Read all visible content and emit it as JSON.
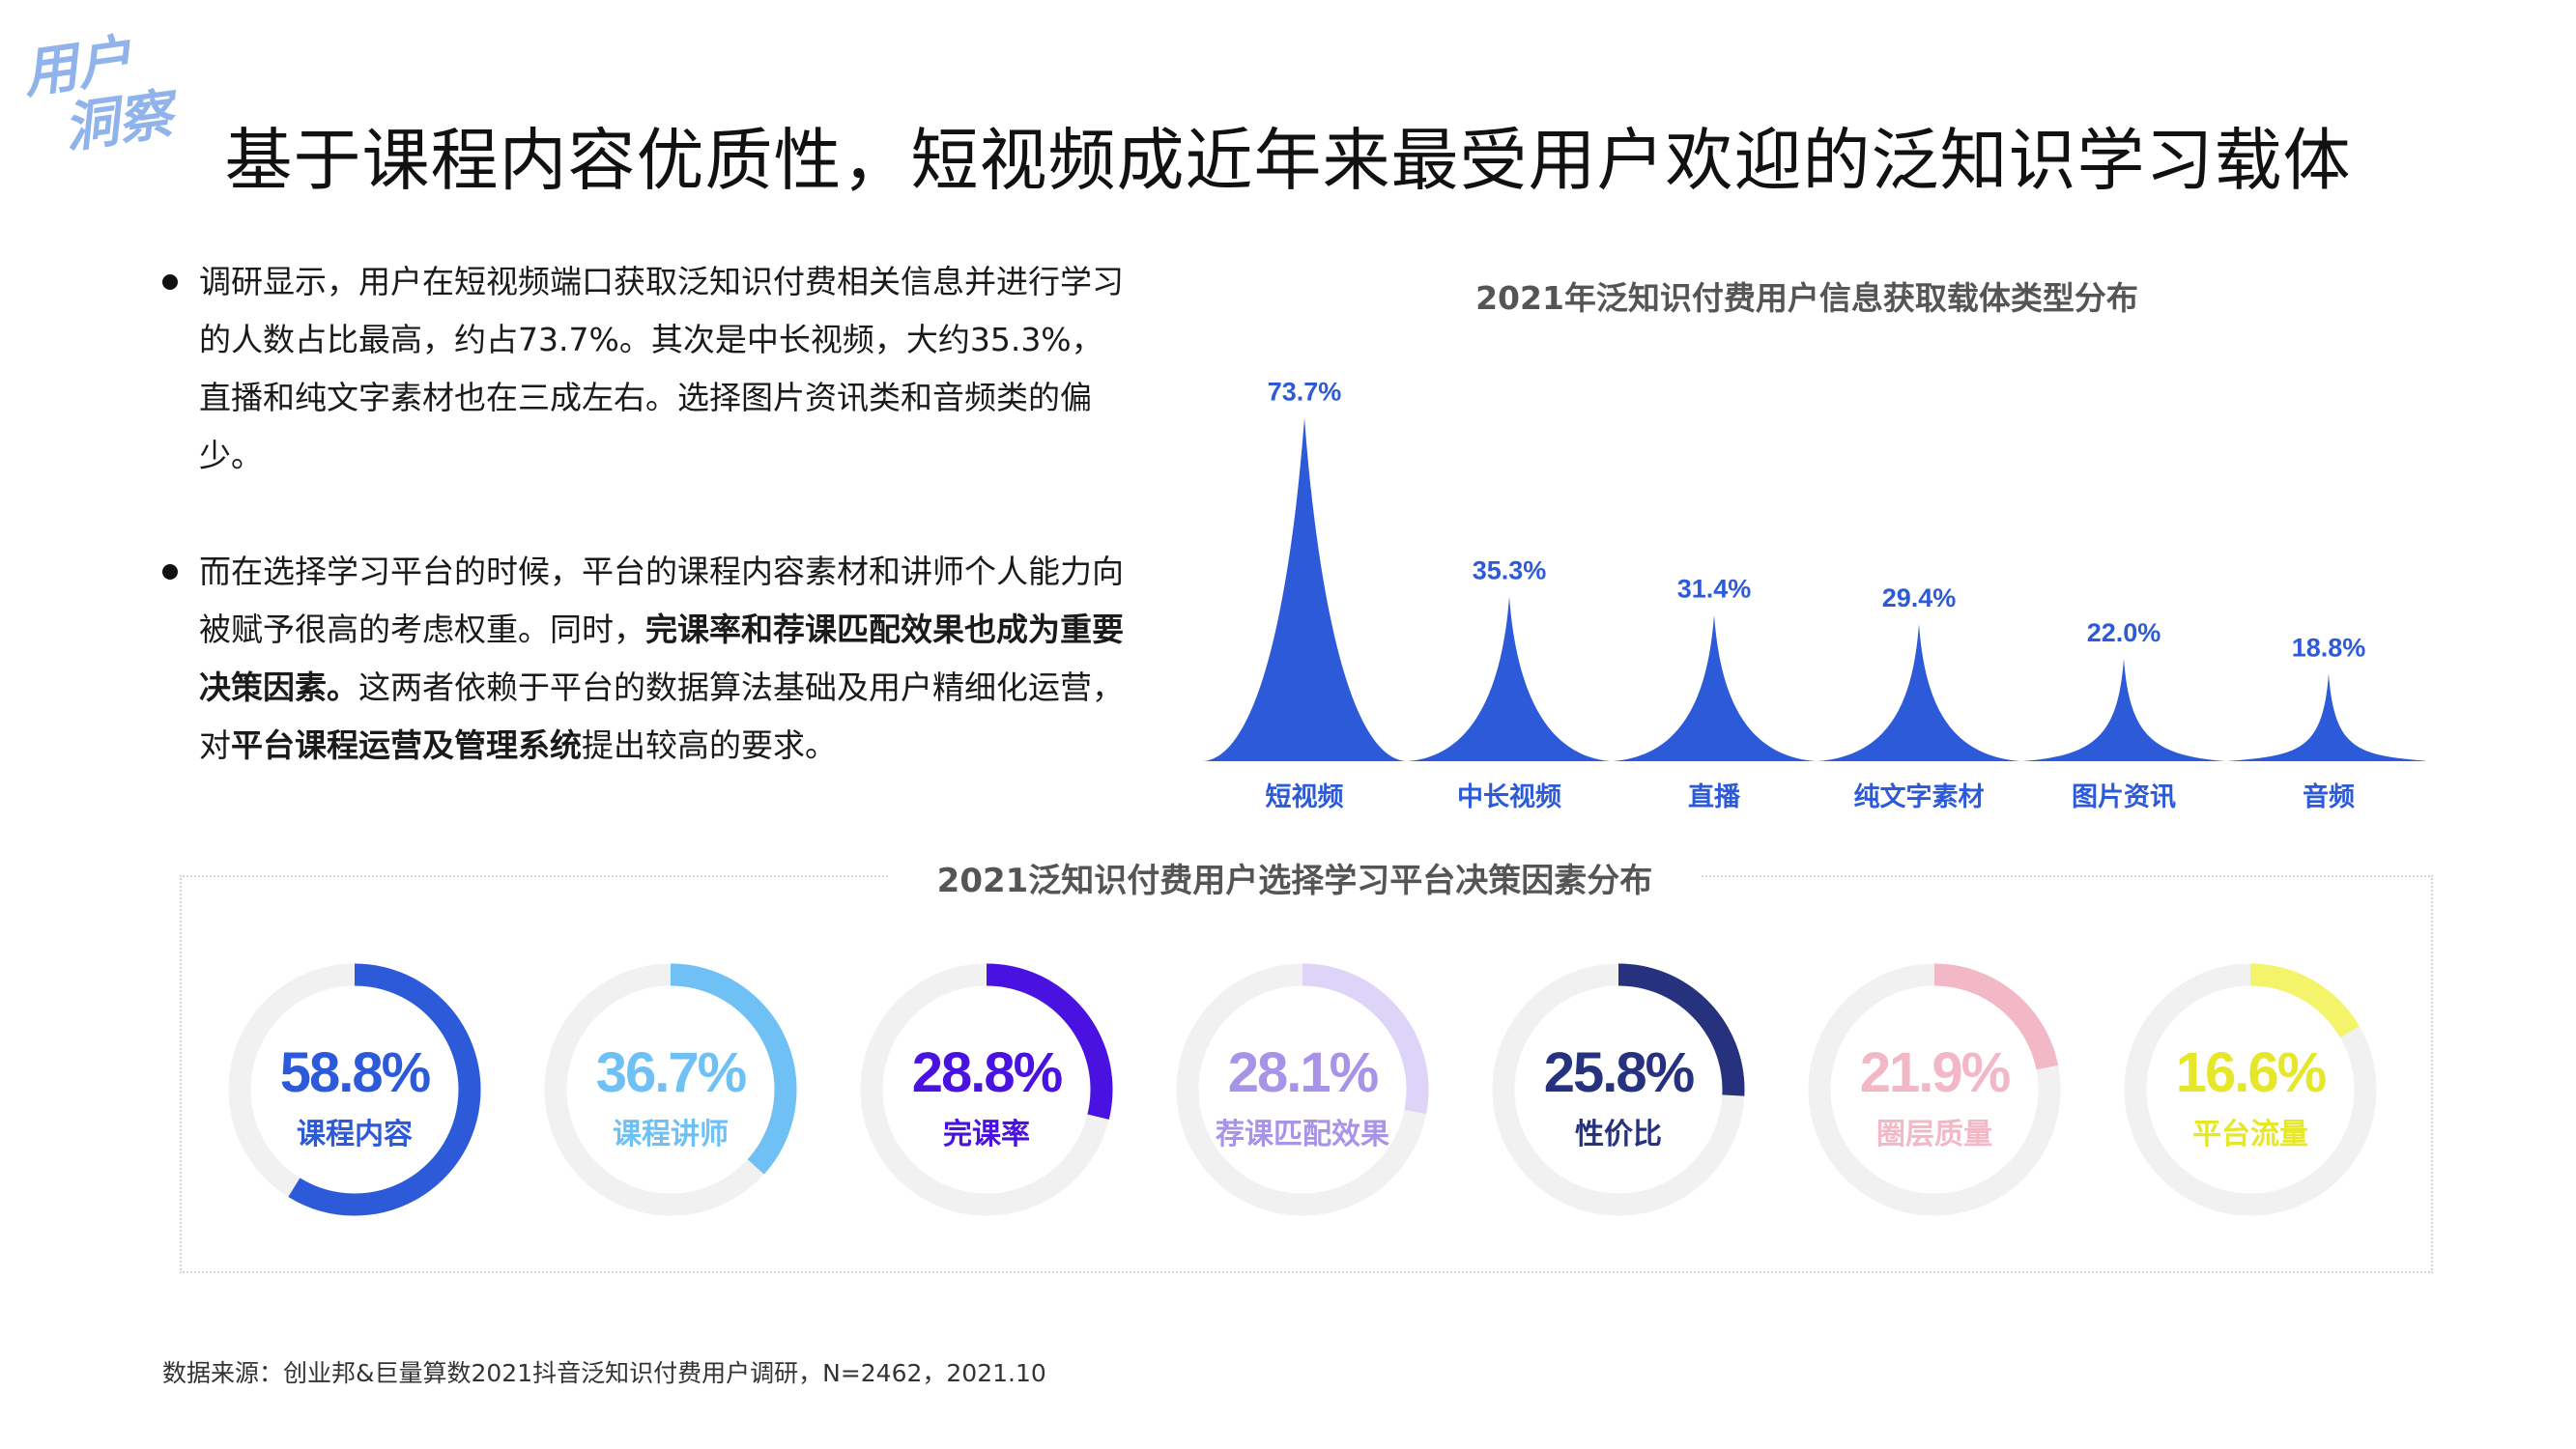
{
  "corner_tag": {
    "line1": "用户",
    "line2": "洞察"
  },
  "title": "基于课程内容优质性，短视频成近年来最受用户欢迎的泛知识学习载体",
  "bullets": [
    {
      "text": "调研显示，用户在短视频端口获取泛知识付费相关信息并进行学习的人数占比最高，约占73.7%。其次是中长视频，大约35.3%，直播和纯文字素材也在三成左右。选择图片资讯类和音频类的偏少。"
    },
    {
      "part1": "而在选择学习平台的时候，平台的课程内容素材和讲师个人能力向被赋予很高的考虑权重。同时，",
      "bold1": "完课率和荐课匹配效果也成为重要决策因素。",
      "part2": "这两者依赖于平台的数据算法基础及用户精细化运营，对",
      "bold2": "平台课程运营及管理系统",
      "part3": "提出较高的要求。"
    }
  ],
  "source": "数据来源：创业邦&巨量算数2021抖音泛知识付费用户调研，N=2462，2021.10",
  "chart_data": [
    {
      "type": "area",
      "title": "2021年泛知识付费用户信息获取载体类型分布",
      "categories": [
        "短视频",
        "中长视频",
        "直播",
        "纯文字素材",
        "图片资讯",
        "音频"
      ],
      "values": [
        73.7,
        35.3,
        31.4,
        29.4,
        22.0,
        18.8
      ],
      "value_labels": [
        "73.7%",
        "35.3%",
        "31.4%",
        "29.4%",
        "22.0%",
        "18.8%"
      ],
      "ylim": [
        0,
        80
      ],
      "unit": "%",
      "color": "#2c5ad9",
      "grid": false
    },
    {
      "type": "pie",
      "title": "2021泛知识付费用户选择学习平台决策因素分布",
      "categories": [
        "课程内容",
        "课程讲师",
        "完课率",
        "荐课匹配效果",
        "性价比",
        "圈层质量",
        "平台流量"
      ],
      "values": [
        58.8,
        36.7,
        28.8,
        28.1,
        25.8,
        21.9,
        16.6
      ],
      "value_labels": [
        "58.8%",
        "36.7%",
        "28.8%",
        "28.1%",
        "25.8%",
        "21.9%",
        "16.6%"
      ],
      "unit": "%",
      "colors": [
        "#2c5ad9",
        "#6ec0f5",
        "#4a12e0",
        "#ddd4f8",
        "#26327e",
        "#f2b8c6",
        "#f4f46a"
      ],
      "text_colors": [
        "#2c5ad9",
        "#6ec0f5",
        "#4a12e0",
        "#a894e6",
        "#26327e",
        "#f2b8c6",
        "#e6e62a"
      ],
      "track_color": "#f1f1f1"
    }
  ]
}
